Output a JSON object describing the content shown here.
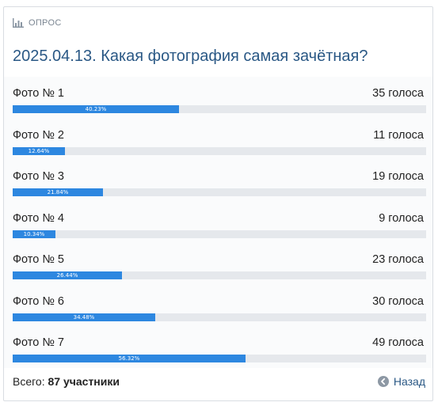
{
  "header": {
    "label": "ОПРОС"
  },
  "poll": {
    "title": "2025.04.13. Какая фотография самая зачётная?",
    "options": [
      {
        "name": "Фото № 1",
        "votes": "35 голоса",
        "percent_label": "40.23%",
        "percent": 40.23
      },
      {
        "name": "Фото № 2",
        "votes": "11 голоса",
        "percent_label": "12.64%",
        "percent": 12.64
      },
      {
        "name": "Фото № 3",
        "votes": "19 голоса",
        "percent_label": "21.84%",
        "percent": 21.84
      },
      {
        "name": "Фото № 4",
        "votes": "9 голоса",
        "percent_label": "10.34%",
        "percent": 10.34
      },
      {
        "name": "Фото № 5",
        "votes": "23 голоса",
        "percent_label": "26.44%",
        "percent": 26.44
      },
      {
        "name": "Фото № 6",
        "votes": "30 голоса",
        "percent_label": "34.48%",
        "percent": 34.48
      },
      {
        "name": "Фото № 7",
        "votes": "49 голоса",
        "percent_label": "56.32%",
        "percent": 56.32
      }
    ]
  },
  "footer": {
    "total_prefix": "Всего:",
    "total_value": "87 участники",
    "back_label": "Назад"
  },
  "colors": {
    "accent": "#2d87e0",
    "link": "#2a5885",
    "track": "#e5e8ec"
  },
  "icons": {
    "header": "bar-chart-icon",
    "back": "arrow-left-circle-icon"
  }
}
